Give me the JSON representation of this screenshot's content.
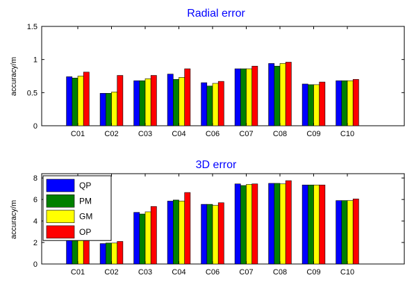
{
  "chart_data": [
    {
      "type": "bar",
      "title": "Radial error",
      "xlabel": "",
      "ylabel": "accuracy/m",
      "categories": [
        "C01",
        "C02",
        "C03",
        "C04",
        "C06",
        "C07",
        "C08",
        "C09",
        "C10"
      ],
      "ylim": [
        0,
        1.5
      ],
      "yticks": [
        "0",
        "0.5",
        "1",
        "1.5"
      ],
      "ytick_values": [
        0,
        0.5,
        1,
        1.5
      ],
      "series": [
        {
          "name": "QP",
          "color": "#0000ff",
          "values": [
            0.74,
            0.49,
            0.68,
            0.78,
            0.65,
            0.86,
            0.94,
            0.63,
            0.68
          ]
        },
        {
          "name": "PM",
          "color": "#008000",
          "values": [
            0.72,
            0.49,
            0.68,
            0.7,
            0.6,
            0.86,
            0.9,
            0.62,
            0.68
          ]
        },
        {
          "name": "GM",
          "color": "#ffff00",
          "values": [
            0.75,
            0.51,
            0.71,
            0.73,
            0.64,
            0.86,
            0.94,
            0.62,
            0.68
          ]
        },
        {
          "name": "OP",
          "color": "#ff0000",
          "values": [
            0.81,
            0.76,
            0.76,
            0.86,
            0.67,
            0.9,
            0.96,
            0.66,
            0.7
          ]
        }
      ],
      "legend": "none"
    },
    {
      "type": "bar",
      "title": "3D error",
      "xlabel": "",
      "ylabel": "accuracy/m",
      "categories": [
        "C01",
        "C02",
        "C03",
        "C04",
        "C06",
        "C07",
        "C08",
        "C09",
        "C10"
      ],
      "ylim": [
        0,
        8.4
      ],
      "yticks": [
        "0",
        "2",
        "4",
        "6",
        "8"
      ],
      "ytick_values": [
        0,
        2,
        4,
        6,
        8
      ],
      "series": [
        {
          "name": "QP",
          "color": "#0000ff",
          "values": [
            2.75,
            1.9,
            4.8,
            5.85,
            5.55,
            7.45,
            7.5,
            7.35,
            5.9
          ]
        },
        {
          "name": "PM",
          "color": "#008000",
          "values": [
            2.6,
            1.95,
            4.65,
            5.95,
            5.55,
            7.3,
            7.5,
            7.35,
            5.9
          ]
        },
        {
          "name": "GM",
          "color": "#ffff00",
          "values": [
            2.65,
            1.95,
            4.85,
            5.85,
            5.45,
            7.4,
            7.45,
            7.35,
            5.9
          ]
        },
        {
          "name": "OP",
          "color": "#ff0000",
          "values": [
            2.75,
            2.1,
            5.35,
            6.65,
            5.7,
            7.45,
            7.75,
            7.35,
            6.05
          ]
        }
      ],
      "legend": "top-left"
    }
  ]
}
